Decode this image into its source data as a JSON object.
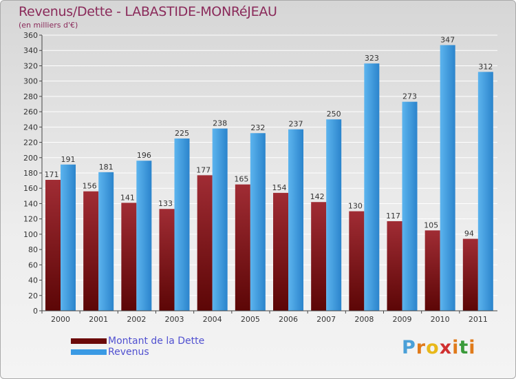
{
  "header": {
    "title": "Revenus/Dette - LABASTIDE-MONRéJEAU",
    "subtitle": "(en milliers d'€)"
  },
  "legend": {
    "items": [
      {
        "label": "Montant de la Dette",
        "color": "#6b0a0a"
      },
      {
        "label": "Revenus",
        "color": "#3a9ae4"
      }
    ]
  },
  "brand": {
    "letters": [
      "P",
      "r",
      "o",
      "x",
      "i",
      "t",
      "i"
    ],
    "colors": [
      "#4aa0d8",
      "#e07a1a",
      "#e8b81a",
      "#d03030",
      "#e07a1a",
      "#3a9a3a",
      "#e07a1a"
    ]
  },
  "colors": {
    "debt_light": "#a02c34",
    "debt_dark": "#5c0606",
    "revenue_light": "#5cb4ee",
    "revenue_dark": "#2b84cc",
    "axis": "#444444",
    "grid": "#ffffff"
  },
  "chart_data": {
    "type": "bar",
    "title": "Revenus/Dette - LABASTIDE-MONRéJEAU",
    "ylabel": "(en milliers d'€)",
    "xlabel": "",
    "ylim": [
      0,
      360
    ],
    "ytick_step": 20,
    "grid": true,
    "categories": [
      "2000",
      "2001",
      "2002",
      "2003",
      "2004",
      "2005",
      "2006",
      "2007",
      "2008",
      "2009",
      "2010",
      "2011"
    ],
    "series": [
      {
        "name": "Montant de la Dette",
        "values": [
          171,
          156,
          141,
          133,
          177,
          165,
          154,
          142,
          130,
          117,
          105,
          94
        ]
      },
      {
        "name": "Revenus",
        "values": [
          191,
          181,
          196,
          225,
          238,
          232,
          237,
          250,
          323,
          273,
          347,
          312
        ]
      }
    ]
  }
}
